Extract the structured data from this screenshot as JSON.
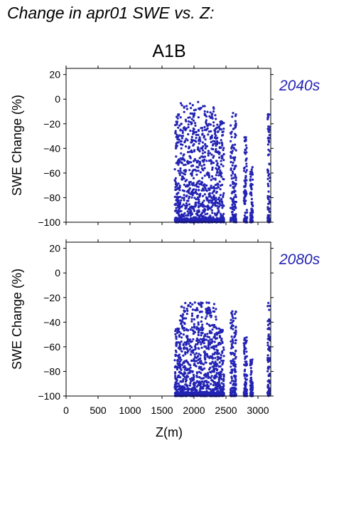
{
  "figure": {
    "title": "Change in apr01 SWE vs. Z:",
    "scenario": "A1B",
    "marker_color": "#2323b4",
    "label_color": "#2323b4"
  },
  "chart_data": [
    {
      "type": "scatter",
      "period_label": "2040s",
      "ylabel": "SWE Change (%)",
      "xlim": [
        0,
        3200
      ],
      "ylim": [
        -100,
        25
      ],
      "xticks": [
        0,
        500,
        1000,
        1500,
        2000,
        2500,
        3000
      ],
      "yticks": [
        20,
        0,
        -20,
        -40,
        -60,
        -80,
        -100
      ],
      "grid": false,
      "elevation_clusters": [
        {
          "z_min": 1700,
          "z_max": 1780,
          "swe_max": -12
        },
        {
          "z_min": 1780,
          "z_max": 2100,
          "swe_max": -2
        },
        {
          "z_min": 2100,
          "z_max": 2350,
          "swe_max": -5
        },
        {
          "z_min": 2350,
          "z_max": 2470,
          "swe_max": -18
        },
        {
          "z_min": 2570,
          "z_max": 2660,
          "swe_max": -8
        },
        {
          "z_min": 2780,
          "z_max": 2830,
          "swe_max": -30
        },
        {
          "z_min": 2880,
          "z_max": 2920,
          "swe_max": -55
        },
        {
          "z_min": 3150,
          "z_max": 3190,
          "swe_max": -7
        }
      ],
      "swe_min": -100
    },
    {
      "type": "scatter",
      "period_label": "2080s",
      "ylabel": "SWE Change (%)",
      "xlabel": "Z(m)",
      "xlim": [
        0,
        3200
      ],
      "ylim": [
        -100,
        25
      ],
      "xticks": [
        0,
        500,
        1000,
        1500,
        2000,
        2500,
        3000
      ],
      "yticks": [
        20,
        0,
        -20,
        -40,
        -60,
        -80,
        -100
      ],
      "grid": false,
      "elevation_clusters": [
        {
          "z_min": 1700,
          "z_max": 1780,
          "swe_max": -45
        },
        {
          "z_min": 1780,
          "z_max": 2100,
          "swe_max": -24
        },
        {
          "z_min": 2100,
          "z_max": 2350,
          "swe_max": -24
        },
        {
          "z_min": 2350,
          "z_max": 2470,
          "swe_max": -45
        },
        {
          "z_min": 2570,
          "z_max": 2660,
          "swe_max": -30
        },
        {
          "z_min": 2780,
          "z_max": 2830,
          "swe_max": -52
        },
        {
          "z_min": 2880,
          "z_max": 2920,
          "swe_max": -70
        },
        {
          "z_min": 3150,
          "z_max": 3190,
          "swe_max": -23
        }
      ],
      "swe_min": -100
    }
  ]
}
